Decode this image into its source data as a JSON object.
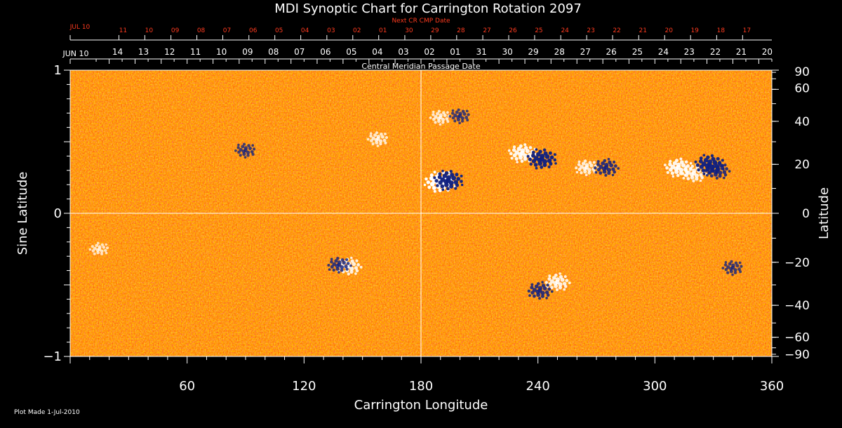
{
  "chart_data": {
    "type": "heatmap",
    "title": "MDI Synoptic Chart for Carrington Rotation 2097",
    "xlabel": "Carrington Longitude",
    "ylabel_left": "Sine Latitude",
    "ylabel_right": "Latitude",
    "top_axis_label": "Central Meridian Passage Date",
    "top_axis_next_label": "Next CR CMP Date",
    "xlim": [
      0,
      360
    ],
    "ylim": [
      -1,
      1
    ],
    "x_ticks": [
      60,
      120,
      180,
      240,
      300,
      360
    ],
    "y_ticks_left": [
      {
        "value": 1,
        "label": "1"
      },
      {
        "value": 0,
        "label": "0"
      },
      {
        "value": -1,
        "label": "−1"
      }
    ],
    "y_ticks_right": [
      90,
      60,
      40,
      20,
      0,
      -20,
      -40,
      -60,
      -90
    ],
    "cmp_dates": [
      {
        "lon": 0,
        "label": "JUN 10"
      },
      {
        "lon": 20,
        "label": "14"
      },
      {
        "lon": 33.3,
        "label": "13"
      },
      {
        "lon": 46.7,
        "label": "12"
      },
      {
        "lon": 60,
        "label": "11"
      },
      {
        "lon": 73.3,
        "label": "10"
      },
      {
        "lon": 86.7,
        "label": "09"
      },
      {
        "lon": 100,
        "label": "08"
      },
      {
        "lon": 113.3,
        "label": "07"
      },
      {
        "lon": 126.7,
        "label": "06"
      },
      {
        "lon": 140,
        "label": "05"
      },
      {
        "lon": 153.3,
        "label": "04"
      },
      {
        "lon": 166.7,
        "label": "03"
      },
      {
        "lon": 180,
        "label": "02"
      },
      {
        "lon": 193.3,
        "label": "01"
      },
      {
        "lon": 206.7,
        "label": "31"
      },
      {
        "lon": 220,
        "label": "30"
      },
      {
        "lon": 233.3,
        "label": "29"
      },
      {
        "lon": 246.7,
        "label": "28"
      },
      {
        "lon": 260,
        "label": "27"
      },
      {
        "lon": 273.3,
        "label": "26"
      },
      {
        "lon": 286.7,
        "label": "25"
      },
      {
        "lon": 300,
        "label": "24"
      },
      {
        "lon": 313.3,
        "label": "23"
      },
      {
        "lon": 326.7,
        "label": "22"
      },
      {
        "lon": 340,
        "label": "21"
      },
      {
        "lon": 353.3,
        "label": "20"
      }
    ],
    "next_cmp_dates": [
      {
        "lon": 0,
        "label": "JUL 10"
      },
      {
        "lon": 25,
        "label": "11"
      },
      {
        "lon": 38.3,
        "label": "10"
      },
      {
        "lon": 51.7,
        "label": "09"
      },
      {
        "lon": 65,
        "label": "08"
      },
      {
        "lon": 78.3,
        "label": "07"
      },
      {
        "lon": 91.7,
        "label": "06"
      },
      {
        "lon": 105,
        "label": "05"
      },
      {
        "lon": 118.3,
        "label": "04"
      },
      {
        "lon": 131.7,
        "label": "03"
      },
      {
        "lon": 145,
        "label": "02"
      },
      {
        "lon": 158.3,
        "label": "01"
      },
      {
        "lon": 171.7,
        "label": "30"
      },
      {
        "lon": 185,
        "label": "29"
      },
      {
        "lon": 198.3,
        "label": "28"
      },
      {
        "lon": 211.7,
        "label": "27"
      },
      {
        "lon": 225,
        "label": "26"
      },
      {
        "lon": 238.3,
        "label": "25"
      },
      {
        "lon": 251.7,
        "label": "24"
      },
      {
        "lon": 265,
        "label": "23"
      },
      {
        "lon": 278.3,
        "label": "22"
      },
      {
        "lon": 291.7,
        "label": "21"
      },
      {
        "lon": 305,
        "label": "20"
      },
      {
        "lon": 318.3,
        "label": "19"
      },
      {
        "lon": 331.7,
        "label": "18"
      },
      {
        "lon": 345,
        "label": "17"
      }
    ],
    "regions": [
      {
        "lon": 190,
        "sinlat": 0.22,
        "polarity": "positive",
        "strength": 1.0
      },
      {
        "lon": 194,
        "sinlat": 0.23,
        "polarity": "negative",
        "strength": 0.9
      },
      {
        "lon": 232,
        "sinlat": 0.42,
        "polarity": "positive",
        "strength": 0.8
      },
      {
        "lon": 242,
        "sinlat": 0.38,
        "polarity": "negative",
        "strength": 0.9
      },
      {
        "lon": 265,
        "sinlat": 0.32,
        "polarity": "positive",
        "strength": 0.6
      },
      {
        "lon": 275,
        "sinlat": 0.32,
        "polarity": "negative",
        "strength": 0.7
      },
      {
        "lon": 312,
        "sinlat": 0.32,
        "polarity": "positive",
        "strength": 0.8
      },
      {
        "lon": 320,
        "sinlat": 0.28,
        "polarity": "positive",
        "strength": 0.7
      },
      {
        "lon": 328,
        "sinlat": 0.34,
        "polarity": "negative",
        "strength": 0.9
      },
      {
        "lon": 332,
        "sinlat": 0.3,
        "polarity": "negative",
        "strength": 0.7
      },
      {
        "lon": 190,
        "sinlat": 0.67,
        "polarity": "positive",
        "strength": 0.5
      },
      {
        "lon": 200,
        "sinlat": 0.68,
        "polarity": "negative",
        "strength": 0.5
      },
      {
        "lon": 158,
        "sinlat": 0.52,
        "polarity": "positive",
        "strength": 0.5
      },
      {
        "lon": 90,
        "sinlat": 0.44,
        "polarity": "negative",
        "strength": 0.5
      },
      {
        "lon": 143,
        "sinlat": -0.37,
        "polarity": "positive",
        "strength": 0.7
      },
      {
        "lon": 138,
        "sinlat": -0.36,
        "polarity": "negative",
        "strength": 0.6
      },
      {
        "lon": 250,
        "sinlat": -0.48,
        "polarity": "positive",
        "strength": 0.7
      },
      {
        "lon": 241,
        "sinlat": -0.54,
        "polarity": "negative",
        "strength": 0.7
      },
      {
        "lon": 340,
        "sinlat": -0.38,
        "polarity": "negative",
        "strength": 0.5
      },
      {
        "lon": 15,
        "sinlat": -0.25,
        "polarity": "positive",
        "strength": 0.4
      }
    ],
    "colors": {
      "background": "#000000",
      "field_base": "#ff5a00",
      "field_dark": "#e02000",
      "field_light": "#ff9a00",
      "positive": "#ffffff",
      "negative": "#102080",
      "axis": "#ffffff",
      "date_next": "#ff3b1f"
    }
  },
  "footer": {
    "plot_made": "Plot Made  1-Jul-2010"
  }
}
